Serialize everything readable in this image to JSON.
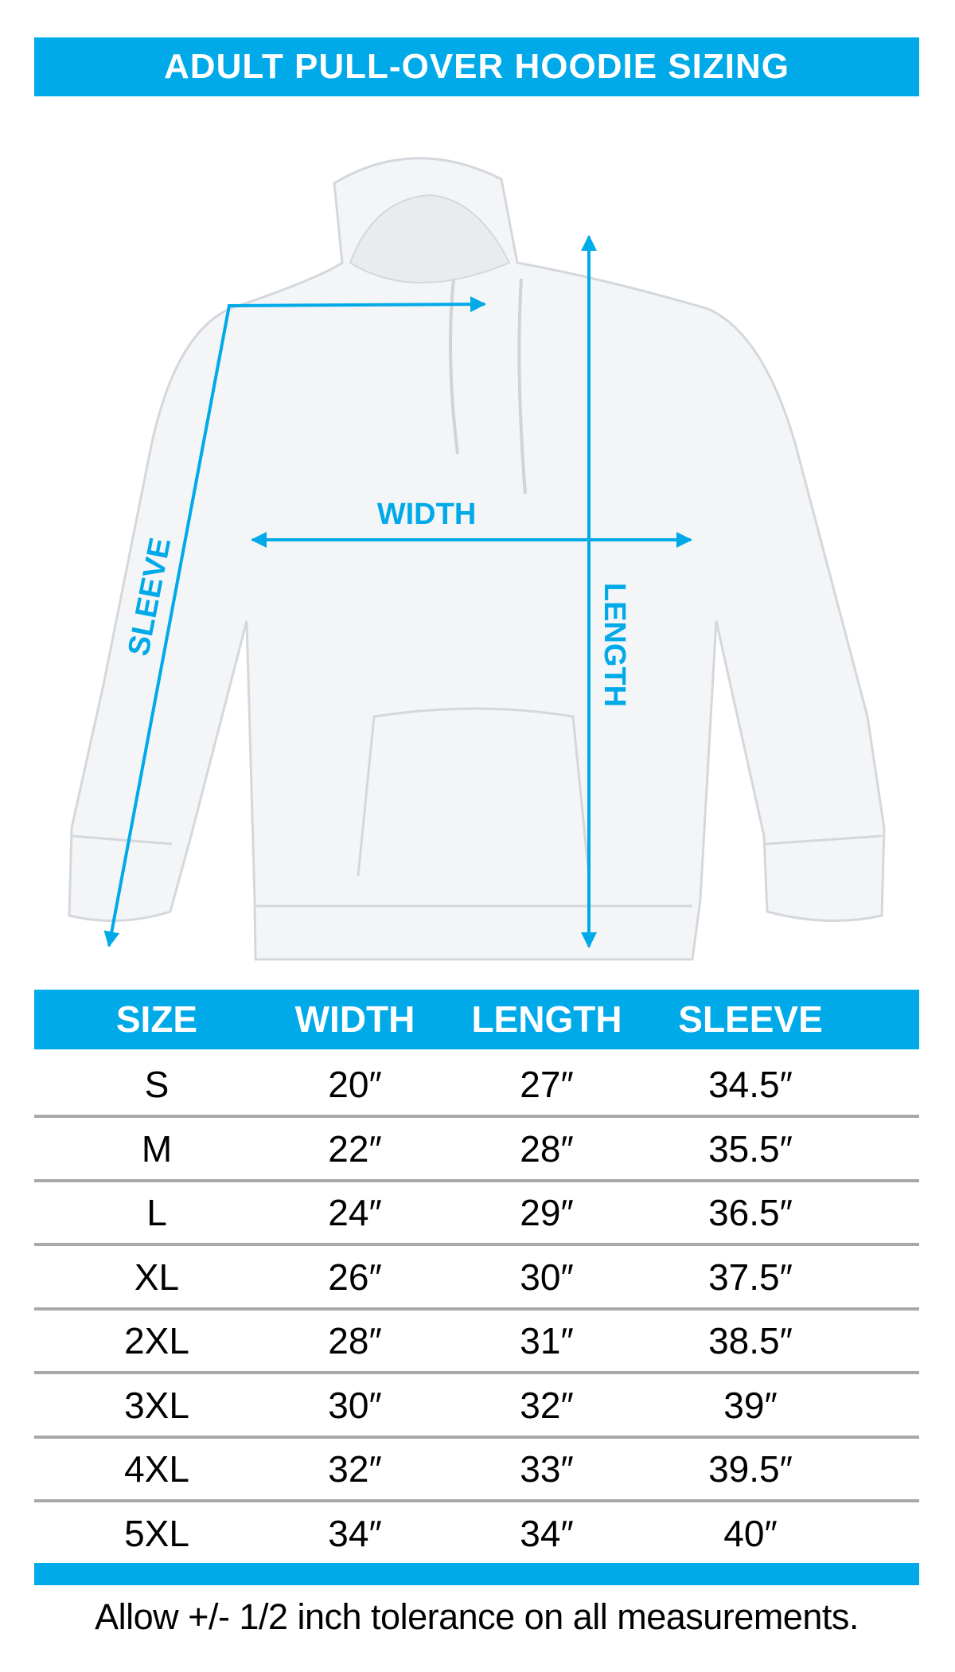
{
  "title": "ADULT PULL-OVER HOODIE SIZING",
  "accent_color": "#00aae9",
  "diagram": {
    "labels": {
      "width": "WIDTH",
      "length": "LENGTH",
      "sleeve": "SLEEVE"
    }
  },
  "table": {
    "headers": [
      "SIZE",
      "WIDTH",
      "LENGTH",
      "SLEEVE"
    ],
    "rows": [
      [
        "S",
        "20″",
        "27″",
        "34.5″"
      ],
      [
        "M",
        "22″",
        "28″",
        "35.5″"
      ],
      [
        "L",
        "24″",
        "29″",
        "36.5″"
      ],
      [
        "XL",
        "26″",
        "30″",
        "37.5″"
      ],
      [
        "2XL",
        "28″",
        "31″",
        "38.5″"
      ],
      [
        "3XL",
        "30″",
        "32″",
        "39″"
      ],
      [
        "4XL",
        "32″",
        "33″",
        "39.5″"
      ],
      [
        "5XL",
        "34″",
        "34″",
        "40″"
      ]
    ]
  },
  "footnote": "Allow +/- 1/2 inch tolerance on all measurements."
}
